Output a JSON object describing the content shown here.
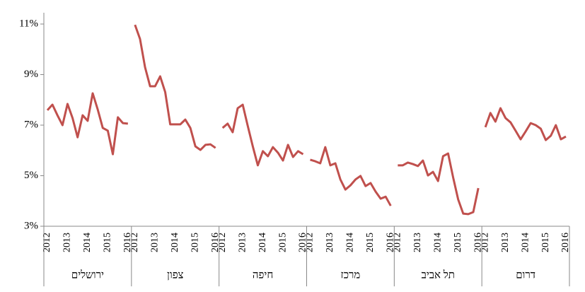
{
  "chart_data": {
    "type": "line",
    "x_labels": [
      2012,
      2013,
      2014,
      2015,
      2016
    ],
    "ylim": [
      3,
      11
    ],
    "yticks": [
      {
        "value": 3,
        "label": "3%"
      },
      {
        "value": 5,
        "label": "5%"
      },
      {
        "value": 7,
        "label": "7%"
      },
      {
        "value": 9,
        "label": "9%"
      },
      {
        "value": 11,
        "label": "11%"
      }
    ],
    "color": "#c0504d",
    "series": [
      {
        "name": "ירושלים",
        "values": [
          7.59,
          7.81,
          7.39,
          7.0,
          7.84,
          7.28,
          6.52,
          7.39,
          7.17,
          8.26,
          7.62,
          6.89,
          6.78,
          5.85,
          7.31,
          7.08,
          7.06
        ]
      },
      {
        "name": "צפון",
        "values": [
          10.97,
          10.41,
          9.29,
          8.54,
          8.54,
          8.93,
          8.31,
          7.03,
          7.03,
          7.03,
          7.22,
          6.89,
          6.16,
          6.02,
          6.22,
          6.24,
          6.1
        ]
      },
      {
        "name": "חיפה",
        "values": [
          6.89,
          7.06,
          6.72,
          7.67,
          7.81,
          6.97,
          6.16,
          5.41,
          5.97,
          5.77,
          6.13,
          5.91,
          5.6,
          6.22,
          5.74,
          5.97,
          5.85
        ]
      },
      {
        "name": "מרכז",
        "values": [
          5.63,
          5.57,
          5.49,
          6.13,
          5.41,
          5.49,
          4.85,
          4.45,
          4.62,
          4.85,
          4.99,
          4.59,
          4.71,
          4.37,
          4.09,
          4.17,
          3.81
        ]
      },
      {
        "name": "תל אביב",
        "values": [
          5.41,
          5.41,
          5.52,
          5.46,
          5.38,
          5.6,
          5.01,
          5.15,
          4.79,
          5.77,
          5.88,
          4.93,
          4.06,
          3.5,
          3.48,
          3.56,
          4.51
        ]
      },
      {
        "name": "דרום",
        "values": [
          6.92,
          7.48,
          7.14,
          7.67,
          7.28,
          7.11,
          6.78,
          6.44,
          6.75,
          7.08,
          7.0,
          6.86,
          6.41,
          6.58,
          7.0,
          6.44,
          6.55
        ]
      }
    ]
  }
}
